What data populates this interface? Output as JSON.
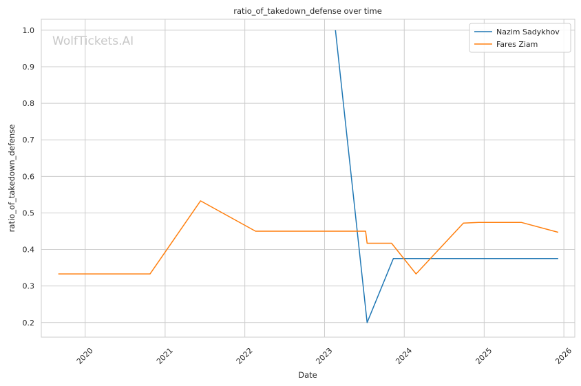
{
  "chart_data": {
    "type": "line",
    "title": "ratio_of_takedown_defense over time",
    "xlabel": "Date",
    "ylabel": "ratio_of_takedown_defense",
    "watermark": "WolfTickets.AI",
    "x_ticks": [
      "2020",
      "2021",
      "2022",
      "2023",
      "2024",
      "2025",
      "2026"
    ],
    "y_ticks": [
      "0.2",
      "0.3",
      "0.4",
      "0.5",
      "0.6",
      "0.7",
      "0.8",
      "0.9",
      "1.0"
    ],
    "xlim": [
      "2019-06-14",
      "2026-02-20"
    ],
    "ylim": [
      0.16,
      1.03
    ],
    "grid": true,
    "legend_position": "top-right",
    "series": [
      {
        "name": "Nazim Sadykhov",
        "color": "#1f77b4",
        "points": [
          [
            "2023-02-20",
            1.0
          ],
          [
            "2023-07-15",
            0.2
          ],
          [
            "2023-11-12",
            0.375
          ],
          [
            "2025-12-06",
            0.375
          ]
        ]
      },
      {
        "name": "Fares Ziam",
        "color": "#ff7f0e",
        "points": [
          [
            "2019-08-31",
            0.333
          ],
          [
            "2020-10-24",
            0.333
          ],
          [
            "2021-06-12",
            0.533
          ],
          [
            "2022-02-19",
            0.45
          ],
          [
            "2023-07-08",
            0.45
          ],
          [
            "2023-07-15",
            0.417
          ],
          [
            "2023-11-04",
            0.417
          ],
          [
            "2024-02-24",
            0.333
          ],
          [
            "2024-09-28",
            0.472
          ],
          [
            "2024-12-07",
            0.474
          ],
          [
            "2025-06-21",
            0.474
          ],
          [
            "2025-12-06",
            0.447
          ]
        ]
      }
    ]
  }
}
